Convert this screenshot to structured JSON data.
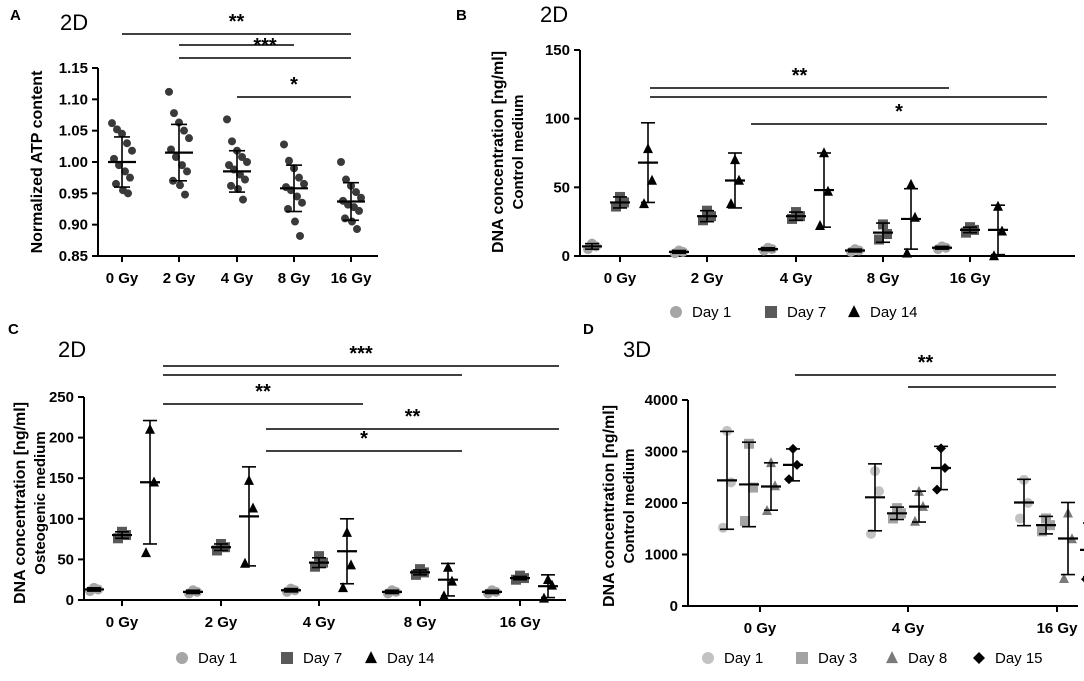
{
  "colors": {
    "ink": "#000000",
    "day1_2d": "#a6a6a6",
    "day7_2d": "#595959",
    "day14_2d": "#000000",
    "day1_3d": "#c2c2c2",
    "day3_3d": "#a3a3a3",
    "day8_3d": "#7a7a7a",
    "day15_3d": "#000000",
    "atp_points": "#3a3a3a"
  },
  "chart_data": [
    {
      "id": "A",
      "panel_label": "A",
      "type": "scatter",
      "title": "2D",
      "xlabel": "",
      "ylabel": "Normalized ATP content",
      "ylim": [
        0.85,
        1.15
      ],
      "yticks": [
        "0.85",
        "0.90",
        "0.95",
        "1.00",
        "1.05",
        "1.10",
        "1.15"
      ],
      "categories": [
        "0 Gy",
        "2 Gy",
        "4 Gy",
        "8 Gy",
        "16 Gy"
      ],
      "points": [
        [
          1.062,
          1.052,
          1.045,
          1.03,
          1.018,
          1.005,
          0.995,
          0.985,
          0.975,
          0.965,
          0.955,
          0.95
        ],
        [
          1.112,
          1.078,
          1.063,
          1.05,
          1.038,
          1.02,
          1.008,
          0.995,
          0.985,
          0.97,
          0.963,
          0.948
        ],
        [
          1.068,
          1.033,
          1.018,
          1.008,
          1.0,
          0.995,
          0.988,
          0.98,
          0.972,
          0.962,
          0.957,
          0.94
        ],
        [
          1.028,
          1.002,
          0.99,
          0.975,
          0.965,
          0.96,
          0.955,
          0.945,
          0.935,
          0.925,
          0.905,
          0.882
        ],
        [
          1.0,
          0.972,
          0.962,
          0.952,
          0.943,
          0.938,
          0.932,
          0.928,
          0.922,
          0.91,
          0.905,
          0.893
        ]
      ],
      "means": [
        1.0,
        1.015,
        0.985,
        0.958,
        0.937
      ],
      "sd": [
        0.04,
        0.045,
        0.033,
        0.037,
        0.03
      ],
      "significance": [
        {
          "from": 0,
          "to": 4,
          "label": "**"
        },
        {
          "from": 1,
          "to": 3,
          "label": ""
        },
        {
          "from": 1,
          "to": 4,
          "label": "***"
        },
        {
          "from": 2,
          "to": 4,
          "label": "*"
        }
      ]
    },
    {
      "id": "B",
      "panel_label": "B",
      "type": "grouped-scatter",
      "title": "2D",
      "ylabel": "DNA concentration [ng/ml]",
      "ylabel2": "Control medium",
      "ylim": [
        0,
        150
      ],
      "yticks": [
        "0",
        "50",
        "100",
        "150"
      ],
      "categories": [
        "0 Gy",
        "2 Gy",
        "4 Gy",
        "8 Gy",
        "16 Gy"
      ],
      "series": [
        {
          "name": "Day 1",
          "marker": "circle",
          "color": "#a6a6a6",
          "means": [
            7,
            3,
            5,
            4,
            6
          ],
          "sd": [
            2,
            1,
            1,
            1,
            1
          ],
          "points": [
            [
              5,
              7,
              9
            ],
            [
              2,
              3,
              4
            ],
            [
              4,
              5,
              6
            ],
            [
              3,
              4,
              5
            ],
            [
              5,
              6,
              7
            ]
          ]
        },
        {
          "name": "Day 7",
          "marker": "square",
          "color": "#595959",
          "means": [
            39,
            29,
            29,
            17,
            19
          ],
          "sd": [
            4,
            4,
            3,
            7,
            2
          ],
          "points": [
            [
              36,
              39,
              43
            ],
            [
              26,
              29,
              33
            ],
            [
              27,
              29,
              32
            ],
            [
              12,
              16,
              23
            ],
            [
              17,
              19,
              21
            ]
          ]
        },
        {
          "name": "Day 14",
          "marker": "triangle",
          "color": "#000000",
          "means": [
            68,
            55,
            48,
            27,
            19
          ],
          "sd": [
            29,
            20,
            27,
            22,
            18
          ],
          "points": [
            [
              38,
              55,
              78
            ],
            [
              38,
              55,
              70
            ],
            [
              22,
              47,
              75
            ],
            [
              2,
              28,
              52
            ],
            [
              0,
              18,
              36
            ]
          ]
        }
      ],
      "legend": [
        "Day 1",
        "Day 7",
        "Day 14"
      ],
      "significance": [
        {
          "from": 0,
          "to": 3,
          "label": "**"
        },
        {
          "from": 0,
          "to": 4,
          "label": ""
        },
        {
          "from": 1,
          "to": 4,
          "label": "*"
        }
      ]
    },
    {
      "id": "C",
      "panel_label": "C",
      "type": "grouped-scatter",
      "title": "2D",
      "ylabel": "DNA concentration [ng/ml]",
      "ylabel2": "Osteogenic medium",
      "ylim": [
        0,
        250
      ],
      "yticks": [
        "0",
        "50",
        "100",
        "150",
        "200",
        "250"
      ],
      "categories": [
        "0 Gy",
        "2 Gy",
        "4 Gy",
        "8 Gy",
        "16 Gy"
      ],
      "series": [
        {
          "name": "Day 1",
          "marker": "circle",
          "color": "#a6a6a6",
          "means": [
            13,
            10,
            12,
            10,
            10
          ],
          "sd": [
            2,
            2,
            2,
            2,
            2
          ],
          "points": [
            [
              11,
              13,
              15
            ],
            [
              8,
              10,
              12
            ],
            [
              10,
              12,
              14
            ],
            [
              8,
              10,
              12
            ],
            [
              8,
              10,
              12
            ]
          ]
        },
        {
          "name": "Day 7",
          "marker": "square",
          "color": "#595959",
          "means": [
            80,
            65,
            46,
            34,
            27
          ],
          "sd": [
            4,
            4,
            6,
            3,
            2
          ],
          "points": [
            [
              76,
              80,
              84
            ],
            [
              61,
              65,
              69
            ],
            [
              41,
              46,
              54
            ],
            [
              31,
              34,
              38
            ],
            [
              25,
              27,
              30
            ]
          ]
        },
        {
          "name": "Day 14",
          "marker": "triangle",
          "color": "#000000",
          "means": [
            145,
            103,
            60,
            25,
            17
          ],
          "sd": [
            76,
            61,
            40,
            20,
            14
          ],
          "points": [
            [
              58,
              145,
              210
            ],
            [
              45,
              113,
              147
            ],
            [
              15,
              43,
              83
            ],
            [
              5,
              23,
              40
            ],
            [
              2,
              18,
              25
            ]
          ]
        }
      ],
      "legend": [
        "Day 1",
        "Day 7",
        "Day 14"
      ],
      "significance": [
        {
          "from": 0,
          "to": 4,
          "label": "***"
        },
        {
          "from": 0,
          "to": 3,
          "label": ""
        },
        {
          "from": 0,
          "to": 2,
          "label": "**"
        },
        {
          "from": 1,
          "to": 4,
          "label": "**"
        },
        {
          "from": 1,
          "to": 3,
          "label": "*"
        }
      ]
    },
    {
      "id": "D",
      "panel_label": "D",
      "type": "grouped-scatter",
      "title": "3D",
      "ylabel": "DNA concentration [ng/ml]",
      "ylabel2": "Control medium",
      "ylim": [
        0,
        4000
      ],
      "yticks": [
        "0",
        "1000",
        "2000",
        "3000",
        "4000"
      ],
      "categories": [
        "0 Gy",
        "4 Gy",
        "16 Gy"
      ],
      "series": [
        {
          "name": "Day 1",
          "marker": "circle",
          "color": "#c2c2c2",
          "means": [
            2440,
            2110,
            2010
          ],
          "sd": [
            950,
            650,
            450
          ],
          "points": [
            [
              1520,
              2400,
              3400
            ],
            [
              1400,
              2230,
              2620
            ],
            [
              1700,
              2000,
              2450
            ]
          ]
        },
        {
          "name": "Day 3",
          "marker": "square",
          "color": "#a3a3a3",
          "means": [
            2360,
            1800,
            1570
          ],
          "sd": [
            820,
            120,
            170
          ],
          "points": [
            [
              1650,
              2300,
              3150
            ],
            [
              1700,
              1800,
              1900
            ],
            [
              1450,
              1570,
              1700
            ]
          ]
        },
        {
          "name": "Day 8",
          "marker": "triangle",
          "color": "#7a7a7a",
          "means": [
            2320,
            1930,
            1310
          ],
          "sd": [
            460,
            300,
            700
          ],
          "points": [
            [
              1850,
              2330,
              2780
            ],
            [
              1640,
              1930,
              2220
            ],
            [
              530,
              1300,
              1800
            ]
          ]
        },
        {
          "name": "Day 15",
          "marker": "diamond",
          "color": "#000000",
          "means": [
            2740,
            2680,
            1090
          ],
          "sd": [
            310,
            420,
            520
          ],
          "points": [
            [
              2460,
              2740,
              3050
            ],
            [
              2260,
              2680,
              3060
            ],
            [
              520,
              1200,
              1500
            ]
          ]
        }
      ],
      "legend": [
        "Day 1",
        "Day 3",
        "Day 8",
        "Day 15"
      ],
      "significance": [
        {
          "from": 0,
          "to": 2,
          "label": "**"
        },
        {
          "from": 1,
          "to": 2,
          "label": ""
        }
      ]
    }
  ]
}
